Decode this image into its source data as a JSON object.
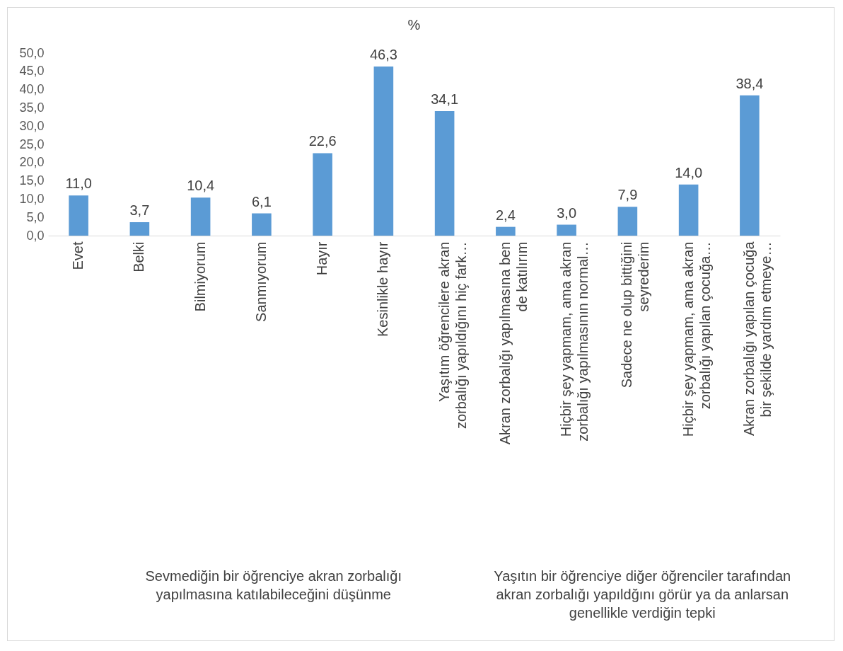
{
  "chart_data": {
    "type": "bar",
    "title": "%",
    "categories": [
      "Evet",
      "Belki",
      "Bilmiyorum",
      "Sanmıyorum",
      "Hayır",
      "Kesinlikle hayır",
      "Yaşıtım öğrencilere akran zorbalığı yapıldığını hiç fark…",
      "Akran zorbalığı yapılmasına ben de katılırım",
      "Hiçbir şey yapmam, ama akran zorbalığı yapılmasının normal…",
      "Sadece ne olup bittiğini seyrederim",
      "Hiçbir şey yapmam, ama akran zorbalığı yapılan çocuğa…",
      "Akran zorbalığı yapılan çocuğa bir şekilde yardım etmeye…"
    ],
    "values": [
      11.0,
      3.7,
      10.4,
      6.1,
      22.6,
      46.3,
      34.1,
      2.4,
      3.0,
      7.9,
      14.0,
      38.4
    ],
    "value_labels": [
      "11,0",
      "3,7",
      "10,4",
      "6,1",
      "22,6",
      "46,3",
      "34,1",
      "2,4",
      "3,0",
      "7,9",
      "14,0",
      "38,4"
    ],
    "color": "#5b9bd5",
    "ylim": [
      0,
      50
    ],
    "yticks": [
      {
        "value": 0,
        "label": "0,0"
      },
      {
        "value": 5,
        "label": "5,0"
      },
      {
        "value": 10,
        "label": "10,0"
      },
      {
        "value": 15,
        "label": "15,0"
      },
      {
        "value": 20,
        "label": "20,0"
      },
      {
        "value": 25,
        "label": "25,0"
      },
      {
        "value": 30,
        "label": "30,0"
      },
      {
        "value": 35,
        "label": "35,0"
      },
      {
        "value": 40,
        "label": "40,0"
      },
      {
        "value": 45,
        "label": "45,0"
      },
      {
        "value": 50,
        "label": "50,0"
      }
    ],
    "grid": false,
    "annotations": [
      "Sevmediğin bir öğrenciye akran zorbalığı yapılmasına katılabileceğini düşünme",
      "Yaşıtın bir öğrenciye diğer öğrenciler tarafından akran zorbalığı yapıldğını görür ya da anlarsan genellikle verdiğin tepki"
    ]
  }
}
